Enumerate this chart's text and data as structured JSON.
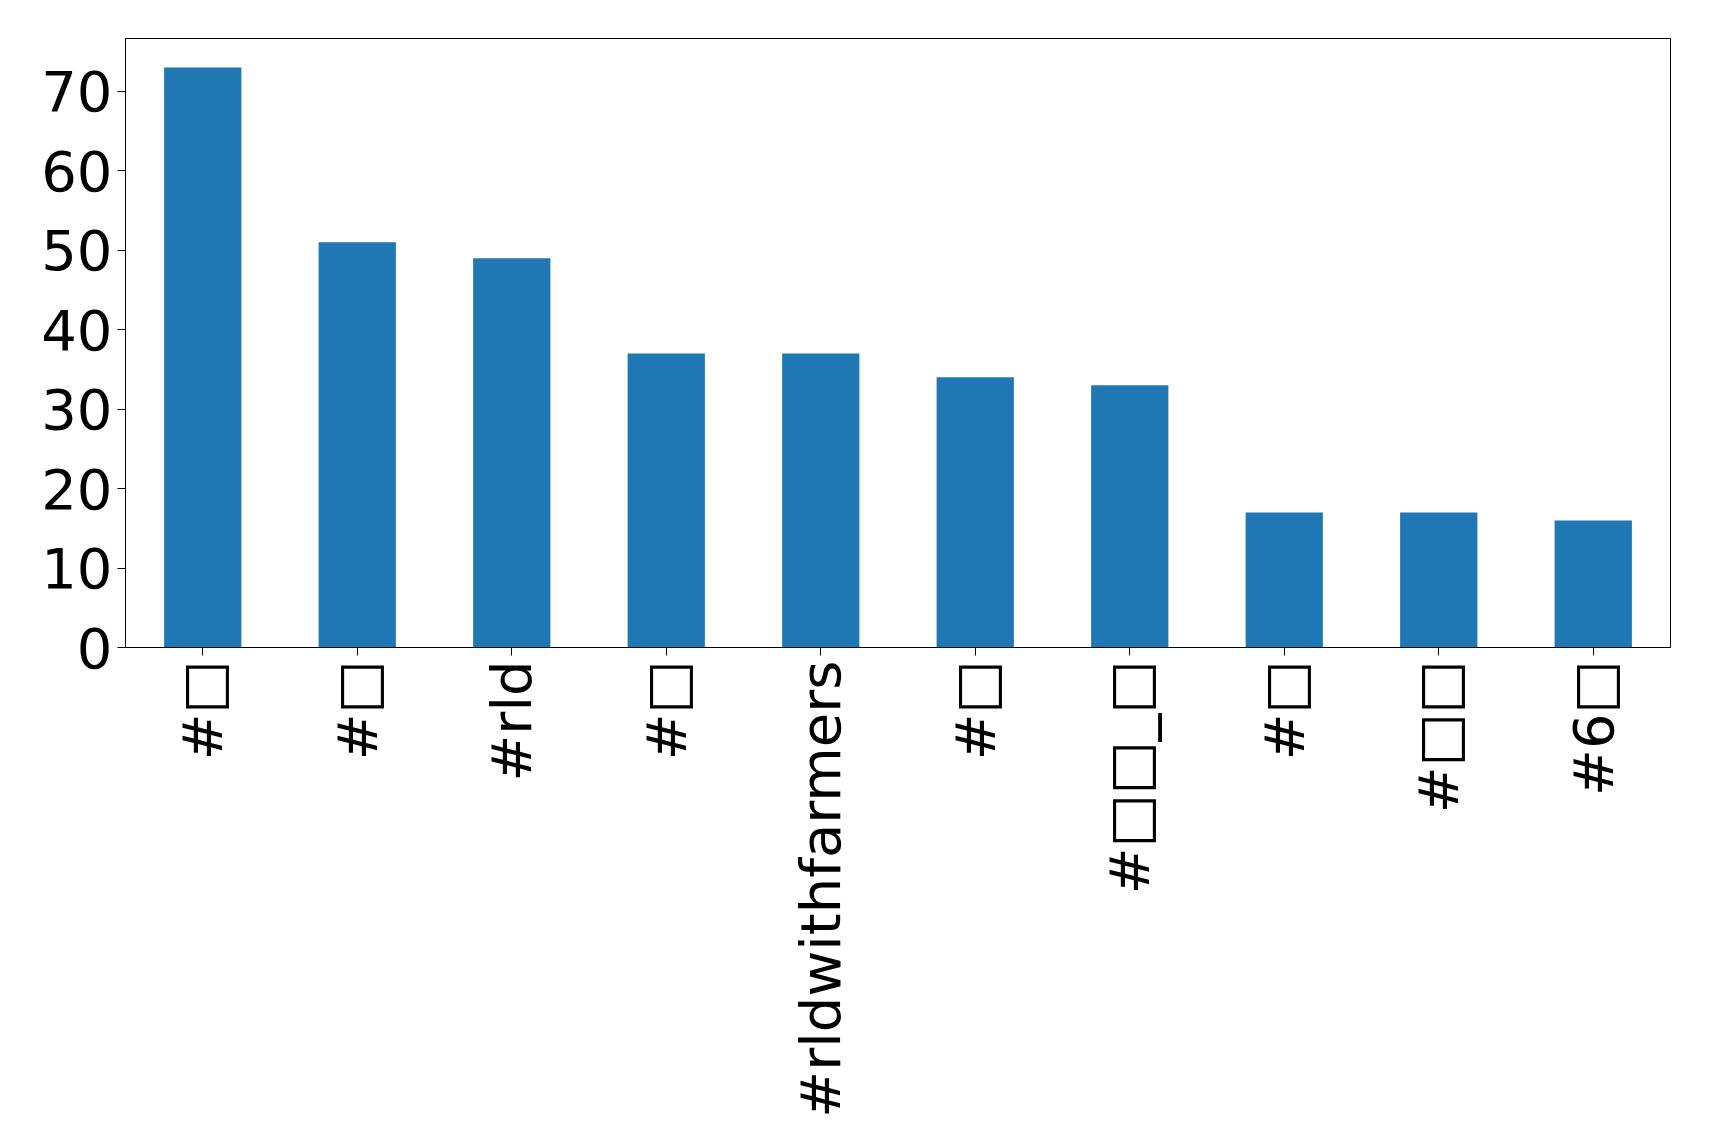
{
  "chart_data": {
    "type": "bar",
    "categories": [
      "#□",
      "#□",
      "#rld",
      "#□",
      "#rldwithfarmers",
      "#□",
      "#□□_□",
      "#□",
      "#□□",
      "#6□"
    ],
    "values": [
      73,
      51,
      49,
      37,
      37,
      34,
      33,
      17,
      17,
      16
    ],
    "color": "#1f77b4",
    "ylim": [
      0,
      76.65
    ],
    "yticks": [
      0,
      10,
      20,
      30,
      40,
      50,
      60,
      70
    ],
    "grid": false
  }
}
